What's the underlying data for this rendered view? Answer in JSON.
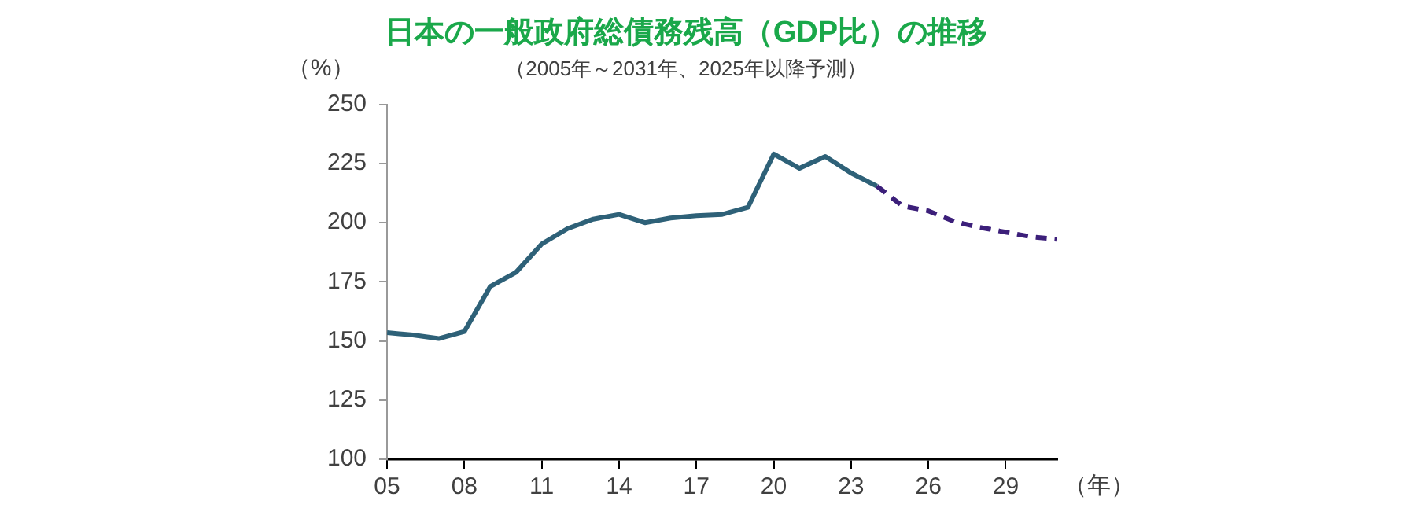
{
  "chart_data": {
    "type": "line",
    "title": "日本の一般政府総債務残高（GDP比）の推移",
    "subtitle": "（2005年～2031年、2025年以降予測）",
    "ylabel": "（%）",
    "xlabel": "（年）",
    "x": [
      2005,
      2006,
      2007,
      2008,
      2009,
      2010,
      2011,
      2012,
      2013,
      2014,
      2015,
      2016,
      2017,
      2018,
      2019,
      2020,
      2021,
      2022,
      2023,
      2024
    ],
    "series": [
      {
        "color": "#2e6178",
        "line_style": "solid",
        "values": [
          153.5,
          152.5,
          151,
          154,
          173,
          179,
          191,
          197.5,
          201.5,
          203.5,
          200,
          202,
          203,
          203.5,
          206.5,
          229,
          223,
          228,
          221,
          215.5
        ]
      },
      {
        "color": "#3c1f7a",
        "line_style": "dashed",
        "x": [
          2024,
          2025,
          2026,
          2027,
          2028,
          2029,
          2030,
          2031
        ],
        "values": [
          215.5,
          207,
          205,
          200.5,
          198,
          196,
          194,
          193
        ]
      }
    ],
    "xlim": [
      2005,
      2031
    ],
    "xticks": [
      {
        "value": 2005,
        "label": "05"
      },
      {
        "value": 2008,
        "label": "08"
      },
      {
        "value": 2011,
        "label": "11"
      },
      {
        "value": 2014,
        "label": "14"
      },
      {
        "value": 2017,
        "label": "17"
      },
      {
        "value": 2020,
        "label": "20"
      },
      {
        "value": 2023,
        "label": "23"
      },
      {
        "value": 2026,
        "label": "26"
      },
      {
        "value": 2029,
        "label": "29"
      }
    ],
    "ylim": [
      100,
      250
    ],
    "yticks": [
      100,
      125,
      150,
      175,
      200,
      225,
      250
    ],
    "grid": false,
    "legend": false,
    "marker": "none"
  }
}
